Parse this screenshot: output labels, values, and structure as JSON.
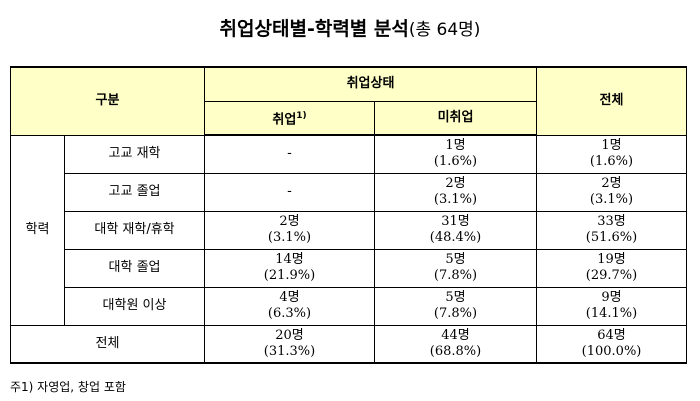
{
  "title": {
    "main": "취업상태별-학력별 분석",
    "sub": "(총 64명)"
  },
  "header": {
    "category": "구분",
    "employment_status": "취업상태",
    "employed": "취업",
    "employed_sup": "1)",
    "unemployed": "미취업",
    "total": "전체"
  },
  "group_label": "학력",
  "rows": [
    {
      "label": "고교 재학",
      "employed": {
        "count": "-",
        "pct": ""
      },
      "unemployed": {
        "count": "1명",
        "pct": "(1.6%)"
      },
      "total": {
        "count": "1명",
        "pct": "(1.6%)"
      }
    },
    {
      "label": "고교 졸업",
      "employed": {
        "count": "-",
        "pct": ""
      },
      "unemployed": {
        "count": "2명",
        "pct": "(3.1%)"
      },
      "total": {
        "count": "2명",
        "pct": "(3.1%)"
      }
    },
    {
      "label": "대학 재학/휴학",
      "employed": {
        "count": "2명",
        "pct": "(3.1%)"
      },
      "unemployed": {
        "count": "31명",
        "pct": "(48.4%)"
      },
      "total": {
        "count": "33명",
        "pct": "(51.6%)"
      }
    },
    {
      "label": "대학 졸업",
      "employed": {
        "count": "14명",
        "pct": "(21.9%)"
      },
      "unemployed": {
        "count": "5명",
        "pct": "(7.8%)"
      },
      "total": {
        "count": "19명",
        "pct": "(29.7%)"
      }
    },
    {
      "label": "대학원 이상",
      "employed": {
        "count": "4명",
        "pct": "(6.3%)"
      },
      "unemployed": {
        "count": "5명",
        "pct": "(7.8%)"
      },
      "total": {
        "count": "9명",
        "pct": "(14.1%)"
      }
    }
  ],
  "total_row": {
    "label": "전체",
    "employed": {
      "count": "20명",
      "pct": "(31.3%)"
    },
    "unemployed": {
      "count": "44명",
      "pct": "(68.8%)"
    },
    "total": {
      "count": "64명",
      "pct": "(100.0%)"
    }
  },
  "footnote": "주1) 자영업, 창업 포함"
}
